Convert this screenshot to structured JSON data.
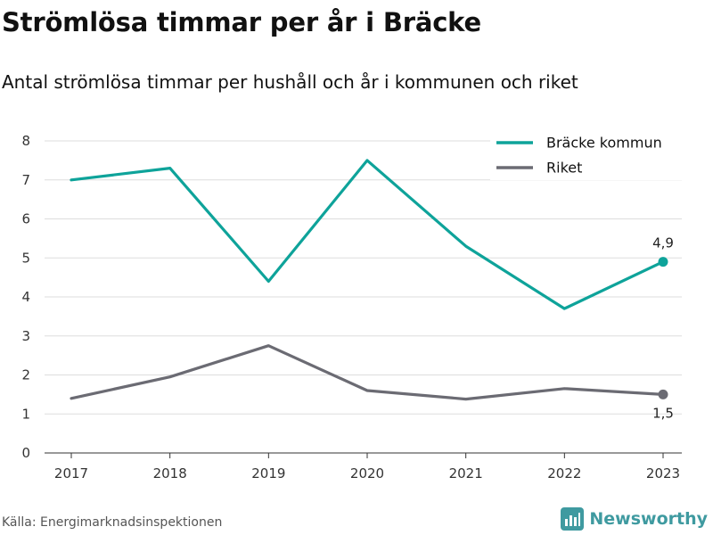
{
  "title": "Strömlösa timmar per år i Bräcke",
  "subtitle": "Antal strömlösa timmar per hushåll och år i kommunen och riket",
  "source": "Källa: Energimarknadsinspektionen",
  "brand": "Newsworthy",
  "brand_icon": "bar-chart-logo-icon",
  "colors": {
    "kommun": "#0ea39a",
    "riket": "#6b6b73",
    "grid": "#dddddd",
    "brand": "#3f9aa0"
  },
  "chart_data": {
    "type": "line",
    "title": "Strömlösa timmar per år i Bräcke",
    "subtitle": "Antal strömlösa timmar per hushåll och år i kommunen och riket",
    "x": [
      "2017",
      "2018",
      "2019",
      "2020",
      "2021",
      "2022",
      "2023"
    ],
    "ylim": [
      0,
      8
    ],
    "yticks": [
      "0",
      "1",
      "2",
      "3",
      "4",
      "5",
      "6",
      "7",
      "8"
    ],
    "grid": "horizontal",
    "legend_position": "top-right",
    "series": [
      {
        "name": "Bräcke kommun",
        "color": "#0ea39a",
        "values": [
          7.0,
          7.3,
          4.4,
          7.5,
          5.3,
          3.7,
          4.9
        ],
        "end_label": "4,9"
      },
      {
        "name": "Riket",
        "color": "#6b6b73",
        "values": [
          1.4,
          1.95,
          2.75,
          1.6,
          1.38,
          1.65,
          1.5
        ],
        "end_label": "1,5"
      }
    ]
  }
}
